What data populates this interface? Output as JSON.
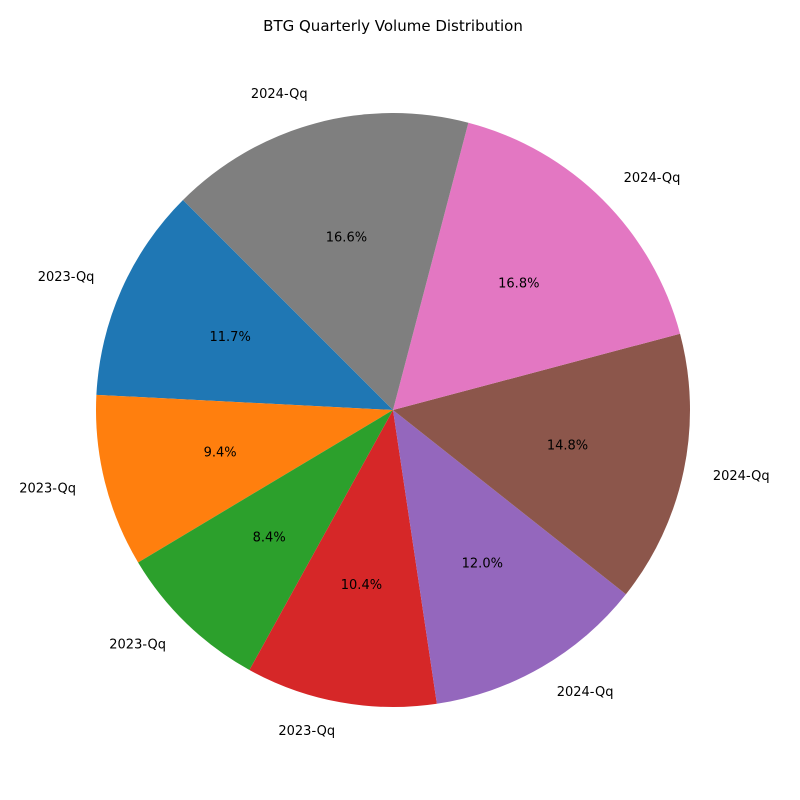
{
  "chart_data": {
    "type": "pie",
    "title": "BTG Quarterly Volume Distribution",
    "start_angle_deg": 135,
    "direction": "counterclockwise",
    "slices": [
      {
        "label": "2023-Qq",
        "value": 11.7,
        "pct_label": "11.7%",
        "color": "#1f77b4"
      },
      {
        "label": "2023-Qq",
        "value": 9.4,
        "pct_label": "9.4%",
        "color": "#ff7f0e"
      },
      {
        "label": "2023-Qq",
        "value": 8.4,
        "pct_label": "8.4%",
        "color": "#2ca02c"
      },
      {
        "label": "2023-Qq",
        "value": 10.4,
        "pct_label": "10.4%",
        "color": "#d62728"
      },
      {
        "label": "2024-Qq",
        "value": 12.0,
        "pct_label": "12.0%",
        "color": "#9467bd"
      },
      {
        "label": "2024-Qq",
        "value": 14.8,
        "pct_label": "14.8%",
        "color": "#8c564b"
      },
      {
        "label": "2024-Qq",
        "value": 16.8,
        "pct_label": "16.8%",
        "color": "#e377c2"
      },
      {
        "label": "2024-Qq",
        "value": 16.6,
        "pct_label": "16.6%",
        "color": "#7f7f7f"
      }
    ]
  }
}
